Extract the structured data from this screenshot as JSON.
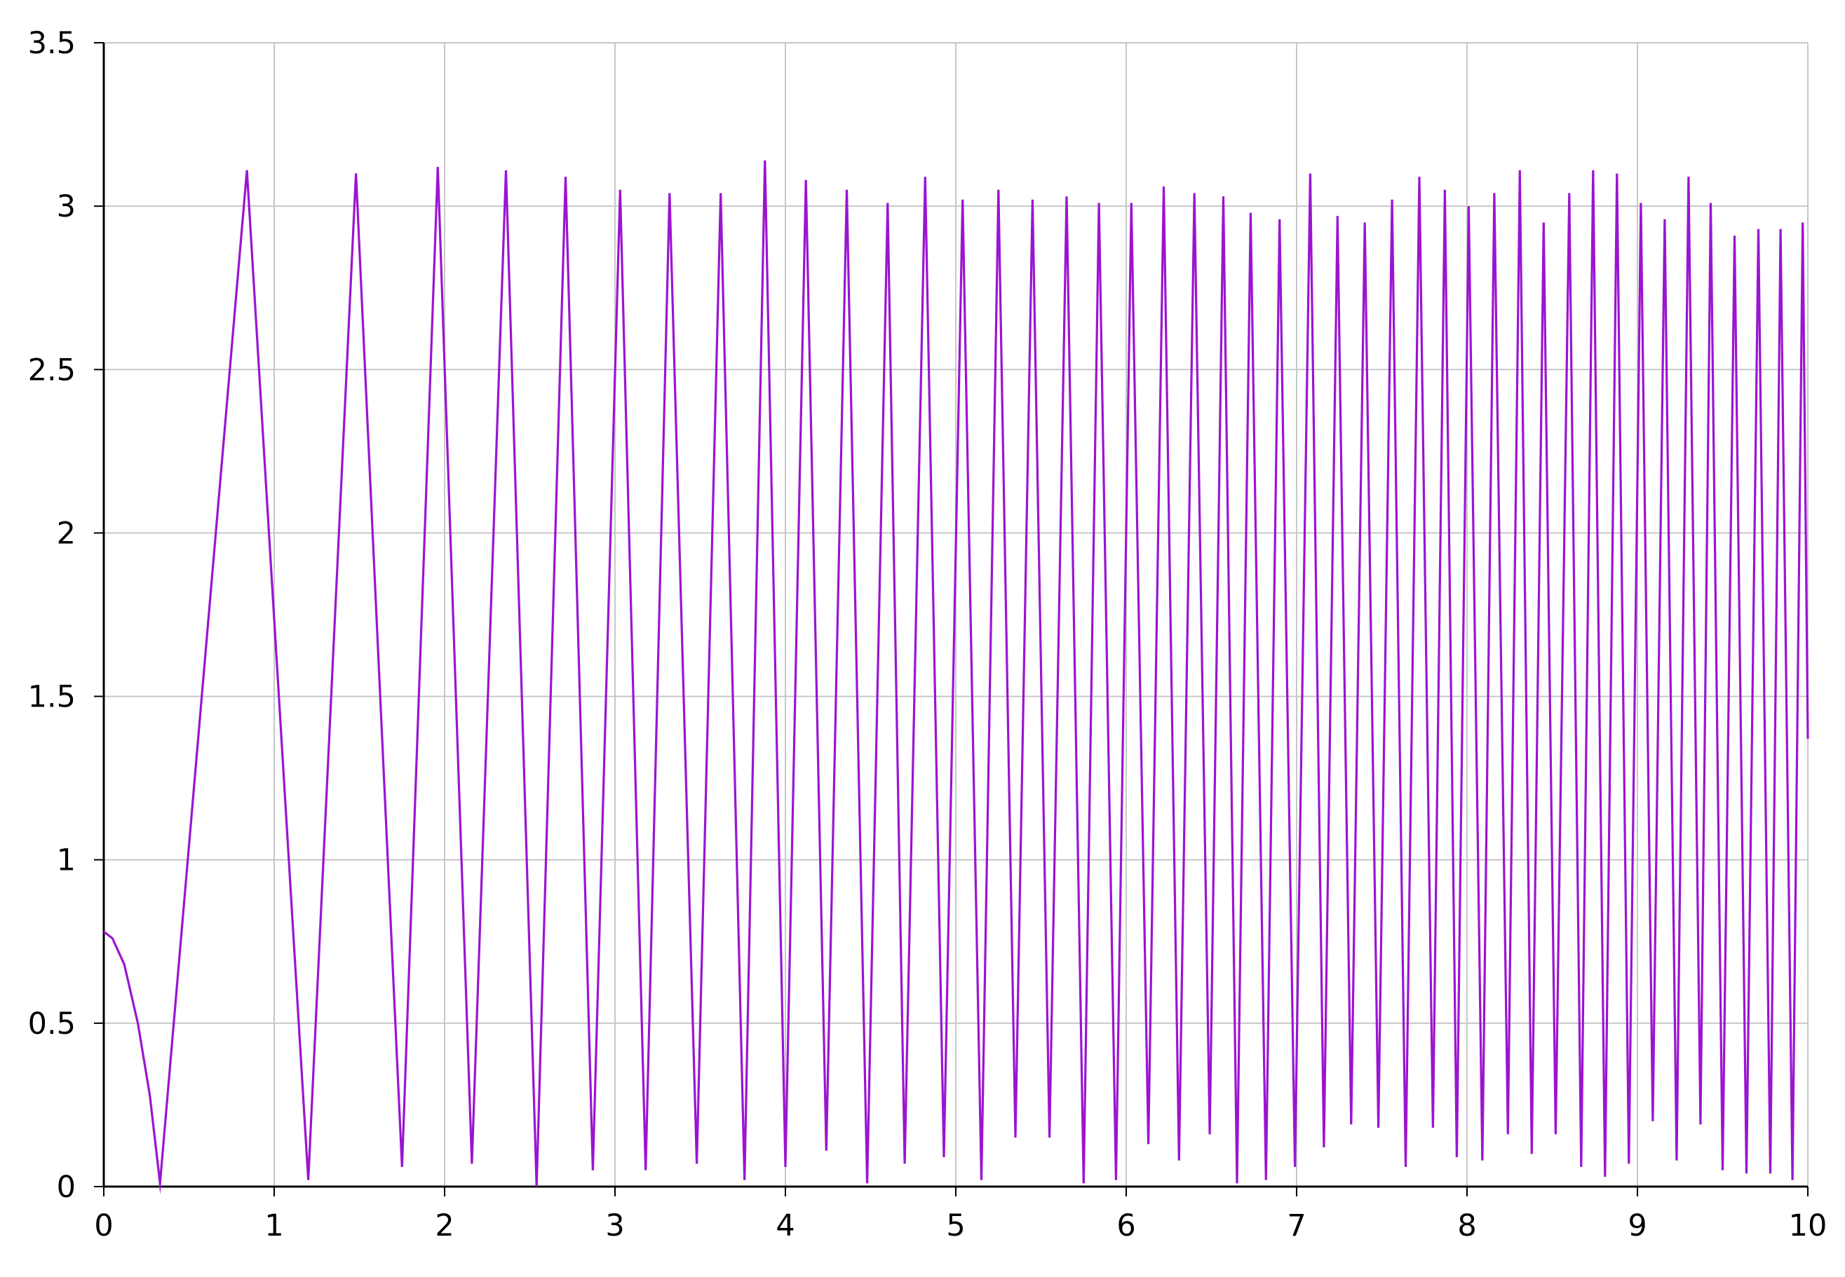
{
  "chart_data": {
    "type": "line",
    "title": "",
    "xlabel": "",
    "ylabel": "",
    "xlim": [
      0,
      10
    ],
    "ylim": [
      0,
      3.5
    ],
    "x_ticks": [
      0,
      1,
      2,
      3,
      4,
      5,
      6,
      7,
      8,
      9,
      10
    ],
    "x_tick_labels": [
      "0",
      "1",
      "2",
      "3",
      "4",
      "5",
      "6",
      "7",
      "8",
      "9",
      "10"
    ],
    "y_ticks": [
      0,
      0.5,
      1,
      1.5,
      2,
      2.5,
      3,
      3.5
    ],
    "y_tick_labels": [
      "0",
      "0.5",
      "1",
      "1.5",
      "2",
      "2.5",
      "3",
      "3.5"
    ],
    "grid": true,
    "legend": "none",
    "line_color": "#9b14d1",
    "grid_color": "#c8c8c8",
    "series": [
      {
        "start": [
          0,
          0.78
        ],
        "curve": [
          [
            0.05,
            0.76
          ],
          [
            0.12,
            0.68
          ],
          [
            0.2,
            0.5
          ],
          [
            0.27,
            0.28
          ]
        ],
        "peaks": [
          [
            0.84,
            3.11
          ],
          [
            1.48,
            3.1
          ],
          [
            1.96,
            3.12
          ],
          [
            2.36,
            3.11
          ],
          [
            2.71,
            3.09
          ],
          [
            3.03,
            3.05
          ],
          [
            3.32,
            3.04
          ],
          [
            3.62,
            3.04
          ],
          [
            3.88,
            3.14
          ],
          [
            4.12,
            3.08
          ],
          [
            4.36,
            3.05
          ],
          [
            4.6,
            3.01
          ],
          [
            4.82,
            3.09
          ],
          [
            5.04,
            3.02
          ],
          [
            5.25,
            3.05
          ],
          [
            5.45,
            3.02
          ],
          [
            5.65,
            3.03
          ],
          [
            5.84,
            3.01
          ],
          [
            6.03,
            3.01
          ],
          [
            6.22,
            3.06
          ],
          [
            6.4,
            3.04
          ],
          [
            6.57,
            3.03
          ],
          [
            6.73,
            2.98
          ],
          [
            6.9,
            2.96
          ],
          [
            7.08,
            3.1
          ],
          [
            7.24,
            2.97
          ],
          [
            7.4,
            2.95
          ],
          [
            7.56,
            3.02
          ],
          [
            7.72,
            3.09
          ],
          [
            7.87,
            3.05
          ],
          [
            8.01,
            3.0
          ],
          [
            8.16,
            3.04
          ],
          [
            8.31,
            3.11
          ],
          [
            8.45,
            2.95
          ],
          [
            8.6,
            3.04
          ],
          [
            8.74,
            3.11
          ],
          [
            8.88,
            3.1
          ],
          [
            9.02,
            3.01
          ],
          [
            9.16,
            2.96
          ],
          [
            9.3,
            3.09
          ],
          [
            9.43,
            3.01
          ],
          [
            9.57,
            2.91
          ],
          [
            9.71,
            2.93
          ],
          [
            9.84,
            2.93
          ],
          [
            9.97,
            2.95
          ]
        ],
        "troughs": [
          [
            0.33,
            0.01
          ],
          [
            1.2,
            0.02
          ],
          [
            1.75,
            0.06
          ],
          [
            2.16,
            0.07
          ],
          [
            2.54,
            0.0
          ],
          [
            2.87,
            0.05
          ],
          [
            3.18,
            0.05
          ],
          [
            3.48,
            0.07
          ],
          [
            3.76,
            0.02
          ],
          [
            4.0,
            0.06
          ],
          [
            4.24,
            0.11
          ],
          [
            4.48,
            0.01
          ],
          [
            4.7,
            0.07
          ],
          [
            4.93,
            0.09
          ],
          [
            5.15,
            0.02
          ],
          [
            5.35,
            0.15
          ],
          [
            5.55,
            0.15
          ],
          [
            5.75,
            0.01
          ],
          [
            5.94,
            0.02
          ],
          [
            6.13,
            0.13
          ],
          [
            6.31,
            0.08
          ],
          [
            6.49,
            0.16
          ],
          [
            6.65,
            0.01
          ],
          [
            6.82,
            0.02
          ],
          [
            6.99,
            0.06
          ],
          [
            7.16,
            0.12
          ],
          [
            7.32,
            0.19
          ],
          [
            7.48,
            0.18
          ],
          [
            7.64,
            0.06
          ],
          [
            7.8,
            0.18
          ],
          [
            7.94,
            0.09
          ],
          [
            8.09,
            0.08
          ],
          [
            8.24,
            0.16
          ],
          [
            8.38,
            0.1
          ],
          [
            8.52,
            0.16
          ],
          [
            8.67,
            0.06
          ],
          [
            8.81,
            0.03
          ],
          [
            8.95,
            0.07
          ],
          [
            9.09,
            0.2
          ],
          [
            9.23,
            0.08
          ],
          [
            9.37,
            0.19
          ],
          [
            9.5,
            0.05
          ],
          [
            9.64,
            0.04
          ],
          [
            9.78,
            0.04
          ],
          [
            9.91,
            0.02
          ]
        ],
        "end": [
          10.0,
          1.37
        ]
      }
    ]
  }
}
